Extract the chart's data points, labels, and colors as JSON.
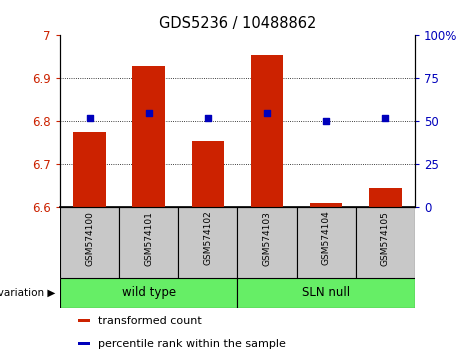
{
  "title": "GDS5236 / 10488862",
  "samples": [
    "GSM574100",
    "GSM574101",
    "GSM574102",
    "GSM574103",
    "GSM574104",
    "GSM574105"
  ],
  "transformed_counts": [
    6.775,
    6.928,
    6.755,
    6.955,
    6.61,
    6.645
  ],
  "percentile_ranks": [
    52,
    55,
    52,
    55,
    50,
    52
  ],
  "ylim_left": [
    6.6,
    7.0
  ],
  "ylim_right": [
    0,
    100
  ],
  "yticks_left": [
    6.6,
    6.7,
    6.8,
    6.9,
    7.0
  ],
  "ytick_labels_left": [
    "6.6",
    "6.7",
    "6.8",
    "6.9",
    "7"
  ],
  "yticks_right": [
    0,
    25,
    50,
    75,
    100
  ],
  "ytick_labels_right": [
    "0",
    "25",
    "50",
    "75",
    "100%"
  ],
  "bar_color": "#CC2200",
  "dot_color": "#0000BB",
  "bar_width": 0.55,
  "group_ranges": [
    [
      0,
      2,
      "wild type"
    ],
    [
      3,
      5,
      "SLN null"
    ]
  ],
  "group_color": "#66EE66",
  "sample_box_color": "#C8C8C8",
  "legend_items": [
    {
      "label": "transformed count",
      "color": "#CC2200"
    },
    {
      "label": "percentile rank within the sample",
      "color": "#0000BB"
    }
  ]
}
